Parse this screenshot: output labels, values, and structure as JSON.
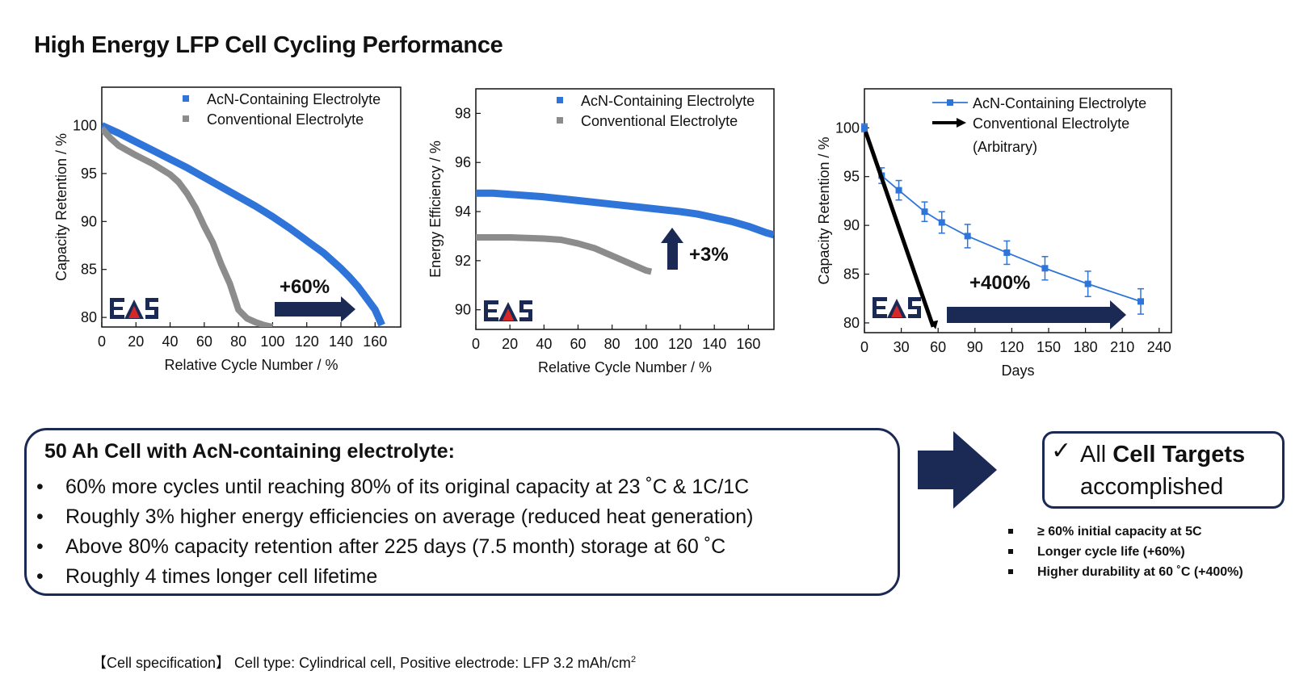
{
  "page": {
    "title": "High Energy LFP Cell Cycling Performance",
    "accent_color": "#1b2a55",
    "acn_color": "#2f74d9",
    "conv_color": "#8c8c8c"
  },
  "chart_data": [
    {
      "id": "chart1",
      "type": "line",
      "xlabel": "Relative Cycle Number / %",
      "ylabel": "Capacity Retention / %",
      "xlim": [
        0,
        175
      ],
      "ylim": [
        79,
        104
      ],
      "xticks": [
        0,
        20,
        40,
        60,
        80,
        100,
        120,
        140,
        160
      ],
      "yticks": [
        80,
        85,
        90,
        95,
        100
      ],
      "legend": [
        "AcN-Containing Electrolyte",
        "Conventional Electrolyte"
      ],
      "series": [
        {
          "name": "AcN-Containing Electrolyte",
          "x": [
            0,
            10,
            20,
            30,
            40,
            50,
            60,
            70,
            80,
            90,
            100,
            110,
            120,
            130,
            140,
            145,
            150,
            155,
            160,
            164
          ],
          "y": [
            100,
            99.2,
            98.3,
            97.4,
            96.5,
            95.6,
            94.6,
            93.6,
            92.6,
            91.6,
            90.5,
            89.3,
            88.0,
            86.7,
            85.1,
            84.2,
            83.2,
            82.0,
            80.8,
            79.2
          ]
        },
        {
          "name": "Conventional Electrolyte",
          "x": [
            0,
            5,
            10,
            20,
            30,
            40,
            45,
            50,
            55,
            60,
            65,
            70,
            75,
            80,
            85,
            90,
            95,
            100
          ],
          "y": [
            99.7,
            98.7,
            97.9,
            96.9,
            96.0,
            94.9,
            94.1,
            92.9,
            91.4,
            89.5,
            87.8,
            85.5,
            83.5,
            80.8,
            79.9,
            79.5,
            79.2,
            79.0
          ]
        }
      ],
      "annotation": "+60%"
    },
    {
      "id": "chart2",
      "type": "line",
      "xlabel": "Relative Cycle Number / %",
      "ylabel": "Energy Efficiency / %",
      "xlim": [
        0,
        175
      ],
      "ylim": [
        89.2,
        99
      ],
      "xticks": [
        0,
        20,
        40,
        60,
        80,
        100,
        120,
        140,
        160
      ],
      "yticks": [
        90,
        92,
        94,
        96,
        98
      ],
      "legend": [
        "AcN-Containing Electrolyte",
        "Conventional Electrolyte"
      ],
      "series": [
        {
          "name": "AcN-Containing Electrolyte",
          "x": [
            0,
            10,
            20,
            40,
            60,
            80,
            100,
            120,
            130,
            140,
            150,
            160,
            170,
            175
          ],
          "y": [
            94.75,
            94.75,
            94.7,
            94.6,
            94.45,
            94.3,
            94.15,
            94.0,
            93.9,
            93.75,
            93.6,
            93.4,
            93.15,
            93.05
          ]
        },
        {
          "name": "Conventional Electrolyte",
          "x": [
            0,
            10,
            20,
            40,
            50,
            60,
            70,
            80,
            90,
            100,
            103
          ],
          "y": [
            92.95,
            92.95,
            92.95,
            92.9,
            92.85,
            92.7,
            92.5,
            92.2,
            91.9,
            91.6,
            91.55
          ]
        }
      ],
      "annotation": "+3%"
    },
    {
      "id": "chart3",
      "type": "line",
      "xlabel": "Days",
      "ylabel": "Capacity Retention / %",
      "xlim": [
        0,
        250
      ],
      "ylim": [
        79,
        104
      ],
      "xticks": [
        0,
        30,
        60,
        90,
        120,
        150,
        180,
        210,
        240
      ],
      "yticks": [
        80,
        85,
        90,
        95,
        100
      ],
      "legend": [
        "AcN-Containing Electrolyte",
        "Conventional Electrolyte",
        "(Arbitrary)"
      ],
      "series": [
        {
          "name": "AcN-Containing Electrolyte",
          "x": [
            0,
            14,
            28,
            49,
            63,
            84,
            116,
            147,
            182,
            225
          ],
          "y": [
            100,
            95.1,
            93.6,
            91.4,
            90.3,
            88.9,
            87.2,
            85.6,
            84.0,
            82.2
          ],
          "error": [
            0.4,
            0.8,
            1.0,
            1.0,
            1.1,
            1.2,
            1.2,
            1.2,
            1.3,
            1.3
          ]
        },
        {
          "name": "Conventional Electrolyte",
          "x": [
            1,
            56
          ],
          "y": [
            99.6,
            79.6
          ]
        }
      ],
      "annotation": "+400%"
    }
  ],
  "summary": {
    "title": "50 Ah Cell with AcN-containing electrolyte:",
    "bullets": [
      "60% more cycles until reaching 80% of its original capacity at 23 ˚C & 1C/1C",
      "Roughly 3% higher energy efficiencies on average (reduced heat generation)",
      "Above 80% capacity retention after 225 days (7.5 month) storage at 60 ˚C",
      "Roughly 4 times longer cell lifetime"
    ]
  },
  "targets": {
    "check": "✓",
    "prefix": "All ",
    "bold": "Cell Targets",
    "line2": "accomplished",
    "items": [
      "≥ 60% initial capacity at 5C",
      "Longer cycle life (+60%)",
      "Higher durability at 60 ˚C (+400%)"
    ]
  },
  "spec": {
    "text": "【Cell specification】 Cell type: Cylindrical cell, Positive electrode: LFP 3.2 mAh/cm",
    "sup": "2"
  },
  "logo": {
    "text": "EAS"
  }
}
